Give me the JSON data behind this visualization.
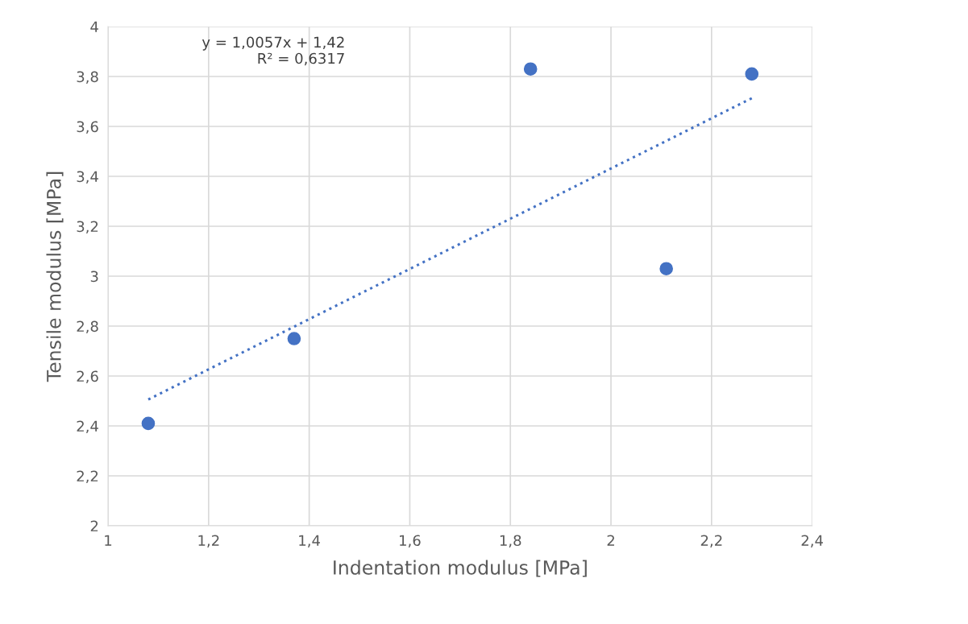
{
  "chart_data": {
    "type": "scatter",
    "xlabel": "Indentation modulus [MPa]",
    "ylabel": "Tensile modulus [MPa]",
    "x": [
      1.08,
      1.37,
      1.84,
      2.11,
      2.28
    ],
    "series": [
      {
        "color": "#4472c4",
        "marker": "circle",
        "values": [
          2.41,
          2.75,
          3.83,
          3.03,
          3.81
        ]
      },
      {
        "type": "line",
        "color": "#4472c4",
        "marker": "none",
        "line_style": "dotted",
        "x": [
          1.08,
          2.28
        ],
        "values": [
          2.506,
          3.713
        ]
      }
    ],
    "annotations": [
      "y = 1,0057x + 1,42\nR² = 0,6317"
    ],
    "xlim": [
      1,
      2.4
    ],
    "ylim": [
      2,
      4
    ],
    "xticks": [
      1,
      {
        "value": 1.2,
        "label": "1,2"
      },
      {
        "value": 1.4,
        "label": "1,4"
      },
      {
        "value": 1.6,
        "label": "1,6"
      },
      {
        "value": 1.8,
        "label": "1,8"
      },
      2,
      {
        "value": 2.2,
        "label": "2,2"
      },
      {
        "value": 2.4,
        "label": "2,4"
      }
    ],
    "yticks": [
      2,
      {
        "value": 2.2,
        "label": "2,2"
      },
      {
        "value": 2.4,
        "label": "2,4"
      },
      {
        "value": 2.6,
        "label": "2,6"
      },
      {
        "value": 2.8,
        "label": "2,8"
      },
      3,
      {
        "value": 3.2,
        "label": "3,2"
      },
      {
        "value": 3.4,
        "label": "3,4"
      },
      {
        "value": 3.6,
        "label": "3,6"
      },
      {
        "value": 3.8,
        "label": "3,8"
      },
      4
    ],
    "grid": true
  }
}
